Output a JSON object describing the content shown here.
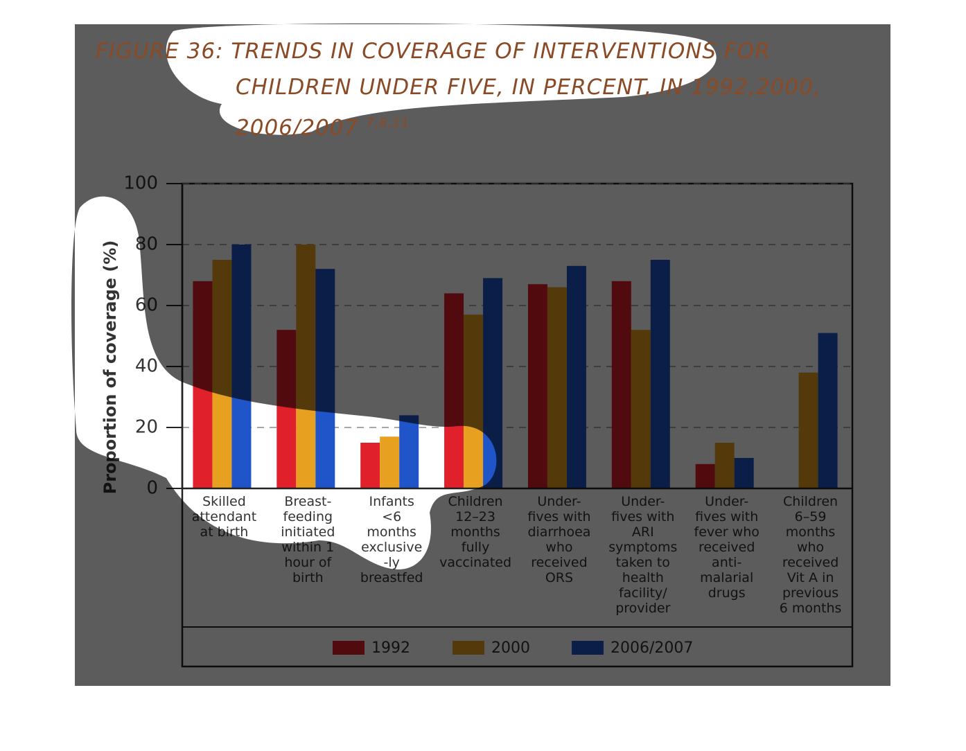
{
  "chart_data": {
    "type": "bar",
    "title": "FIGURE 36: TRENDS IN COVERAGE OF INTERVENTIONS FOR CHILDREN UNDER FIVE, IN PERCENT, IN 1992,2000, 2006/2007",
    "title_superscript": "7,8,11",
    "y_label": "Proportion of coverage (%)",
    "categories": [
      "Skilled\nattendant\nat birth",
      "Breast-\nfeeding\ninitiated\nwithin 1\nhour of\nbirth",
      "Infants\n<6\nmonths\nexclusive\n-ly\nbreastfed",
      "Children\n12–23\nmonths\nfully\nvaccinated",
      "Under-\nfives with\ndiarrhoea\nwho\nreceived\nORS",
      "Under-\nfives with\nARI\nsymptoms\ntaken to\nhealth\nfacility/\nprovider",
      "Under-\nfives with\nfever who\nreceived\nanti-\nmalarial\ndrugs",
      "Children\n6–59\nmonths\nwho\nreceived\nVit A in\nprevious\n6 months"
    ],
    "series": [
      {
        "name": "1992",
        "color": "#e0202a",
        "values": [
          68,
          52,
          15,
          64,
          67,
          68,
          8,
          null
        ]
      },
      {
        "name": "2000",
        "color": "#e8a020",
        "values": [
          75,
          80,
          17,
          57,
          66,
          52,
          15,
          38
        ]
      },
      {
        "name": "2006/2007",
        "color": "#1f55c8",
        "values": [
          80,
          72,
          24,
          69,
          73,
          75,
          10,
          51
        ]
      }
    ],
    "ylim": [
      0,
      100
    ],
    "yticks": [
      0,
      20,
      40,
      60,
      80,
      100
    ],
    "grid": true
  }
}
